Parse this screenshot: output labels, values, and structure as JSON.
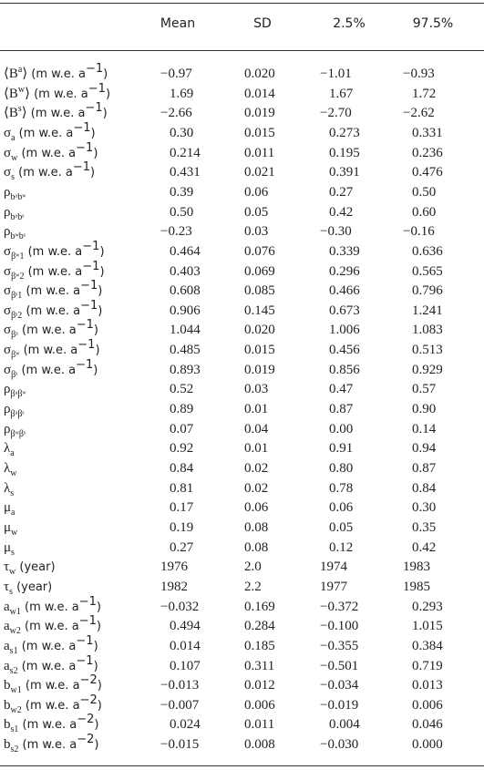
{
  "table": {
    "columns": [
      "Mean",
      "SD",
      "2.5%",
      "97.5%"
    ],
    "rows": [
      {
        "label": [
          {
            "t": "⟨B"
          },
          {
            "sup": "a"
          },
          {
            "t": "⟩"
          },
          {
            "u": " (m w.e. a"
          },
          {
            "sup": "−1"
          },
          {
            "u": ")"
          }
        ],
        "cells": [
          "−0.97",
          "0.020",
          "−1.01",
          "−0.93"
        ]
      },
      {
        "label": [
          {
            "t": "⟨B"
          },
          {
            "sup": "w"
          },
          {
            "t": "⟩"
          },
          {
            "u": " (m w.e. a"
          },
          {
            "sup": "−1"
          },
          {
            "u": ")"
          }
        ],
        "cells": [
          "1.69",
          "0.014",
          "1.67",
          "1.72"
        ]
      },
      {
        "label": [
          {
            "t": "⟨B"
          },
          {
            "sup": "s"
          },
          {
            "t": "⟩"
          },
          {
            "u": " (m w.e. a"
          },
          {
            "sup": "−1"
          },
          {
            "u": ")"
          }
        ],
        "cells": [
          "−2.66",
          "0.019",
          "−2.70",
          "−2.62"
        ]
      },
      {
        "label": [
          {
            "t": "σ"
          },
          {
            "sub": "a"
          },
          {
            "u": " (m w.e. a"
          },
          {
            "sup": "−1"
          },
          {
            "u": ")"
          }
        ],
        "cells": [
          "0.30",
          "0.015",
          "0.273",
          "0.331"
        ]
      },
      {
        "label": [
          {
            "t": "σ"
          },
          {
            "sub": "w"
          },
          {
            "u": " (m w.e. a"
          },
          {
            "sup": "−1"
          },
          {
            "u": ")"
          }
        ],
        "cells": [
          "0.214",
          "0.011",
          "0.195",
          "0.236"
        ]
      },
      {
        "label": [
          {
            "t": "σ"
          },
          {
            "sub": "s"
          },
          {
            "u": " (m w.e. a"
          },
          {
            "sup": "−1"
          },
          {
            "u": ")"
          }
        ],
        "cells": [
          "0.431",
          "0.021",
          "0.391",
          "0.476"
        ]
      },
      {
        "label": [
          {
            "t": "ρ"
          },
          {
            "sub": "bᵃbʷ"
          }
        ],
        "cells": [
          "0.39",
          "0.06",
          "0.27",
          "0.50"
        ]
      },
      {
        "label": [
          {
            "t": "ρ"
          },
          {
            "sub": "bᵃbˢ"
          }
        ],
        "cells": [
          "0.50",
          "0.05",
          "0.42",
          "0.60"
        ]
      },
      {
        "label": [
          {
            "t": "ρ"
          },
          {
            "sub": "bʷbˢ"
          }
        ],
        "cells": [
          "−0.23",
          "0.03",
          "−0.30",
          "−0.16"
        ]
      },
      {
        "label": [
          {
            "t": "σ"
          },
          {
            "sub": "βʷ1"
          },
          {
            "u": " (m w.e. a"
          },
          {
            "sup": "−1"
          },
          {
            "u": ")"
          }
        ],
        "cells": [
          "0.464",
          "0.076",
          "0.339",
          "0.636"
        ]
      },
      {
        "label": [
          {
            "t": "σ"
          },
          {
            "sub": "βʷ2"
          },
          {
            "u": " (m w.e. a"
          },
          {
            "sup": "−1"
          },
          {
            "u": ")"
          }
        ],
        "cells": [
          "0.403",
          "0.069",
          "0.296",
          "0.565"
        ]
      },
      {
        "label": [
          {
            "t": "σ"
          },
          {
            "sub": "βˢ1"
          },
          {
            "u": " (m w.e. a"
          },
          {
            "sup": "−1"
          },
          {
            "u": ")"
          }
        ],
        "cells": [
          "0.608",
          "0.085",
          "0.466",
          "0.796"
        ]
      },
      {
        "label": [
          {
            "t": "σ"
          },
          {
            "sub": "βˢ2"
          },
          {
            "u": " (m w.e. a"
          },
          {
            "sup": "−1"
          },
          {
            "u": ")"
          }
        ],
        "cells": [
          "0.906",
          "0.145",
          "0.673",
          "1.241"
        ]
      },
      {
        "label": [
          {
            "t": "σ"
          },
          {
            "sub": "βᵃ"
          },
          {
            "u": " (m w.e. a"
          },
          {
            "sup": "−1"
          },
          {
            "u": ")"
          }
        ],
        "cells": [
          "1.044",
          "0.020",
          "1.006",
          "1.083"
        ]
      },
      {
        "label": [
          {
            "t": "σ"
          },
          {
            "sub": "βʷ"
          },
          {
            "u": " (m w.e. a"
          },
          {
            "sup": "−1"
          },
          {
            "u": ")"
          }
        ],
        "cells": [
          "0.485",
          "0.015",
          "0.456",
          "0.513"
        ]
      },
      {
        "label": [
          {
            "t": "σ"
          },
          {
            "sub": "βˢ"
          },
          {
            "u": " (m w.e. a"
          },
          {
            "sup": "−1"
          },
          {
            "u": ")"
          }
        ],
        "cells": [
          "0.893",
          "0.019",
          "0.856",
          "0.929"
        ]
      },
      {
        "label": [
          {
            "t": "ρ"
          },
          {
            "sub": "βᵃβʷ"
          }
        ],
        "cells": [
          "0.52",
          "0.03",
          "0.47",
          "0.57"
        ]
      },
      {
        "label": [
          {
            "t": "ρ"
          },
          {
            "sub": "βᵃβˢ"
          }
        ],
        "cells": [
          "0.89",
          "0.01",
          "0.87",
          "0.90"
        ]
      },
      {
        "label": [
          {
            "t": "ρ"
          },
          {
            "sub": "βʷβˢ"
          }
        ],
        "cells": [
          "0.07",
          "0.04",
          "0.00",
          "0.14"
        ]
      },
      {
        "label": [
          {
            "t": "λ"
          },
          {
            "sub": "a"
          }
        ],
        "cells": [
          "0.92",
          "0.01",
          "0.91",
          "0.94"
        ]
      },
      {
        "label": [
          {
            "t": "λ"
          },
          {
            "sub": "w"
          }
        ],
        "cells": [
          "0.84",
          "0.02",
          "0.80",
          "0.87"
        ]
      },
      {
        "label": [
          {
            "t": "λ"
          },
          {
            "sub": "s"
          }
        ],
        "cells": [
          "0.81",
          "0.02",
          "0.78",
          "0.84"
        ]
      },
      {
        "label": [
          {
            "t": "μ"
          },
          {
            "sub": "a"
          }
        ],
        "cells": [
          "0.17",
          "0.06",
          "0.06",
          "0.30"
        ]
      },
      {
        "label": [
          {
            "t": "μ"
          },
          {
            "sub": "w"
          }
        ],
        "cells": [
          "0.19",
          "0.08",
          "0.05",
          "0.35"
        ]
      },
      {
        "label": [
          {
            "t": "μ"
          },
          {
            "sub": "s"
          }
        ],
        "cells": [
          "0.27",
          "0.08",
          "0.12",
          "0.42"
        ]
      },
      {
        "label": [
          {
            "t": "τ"
          },
          {
            "sub": "w"
          },
          {
            "u": " (year)"
          }
        ],
        "cells": [
          "1976",
          "2.0",
          "1974",
          "1983"
        ]
      },
      {
        "label": [
          {
            "t": "τ"
          },
          {
            "sub": "s"
          },
          {
            "u": " (year)"
          }
        ],
        "cells": [
          "1982",
          "2.2",
          "1977",
          "1985"
        ]
      },
      {
        "label": [
          {
            "t": "a"
          },
          {
            "sub": "w1"
          },
          {
            "u": " (m w.e. a"
          },
          {
            "sup": "−1"
          },
          {
            "u": ")"
          }
        ],
        "cells": [
          "−0.032",
          "0.169",
          "−0.372",
          "0.293"
        ]
      },
      {
        "label": [
          {
            "t": "a"
          },
          {
            "sub": "w2"
          },
          {
            "u": " (m w.e. a"
          },
          {
            "sup": "−1"
          },
          {
            "u": ")"
          }
        ],
        "cells": [
          "0.494",
          "0.284",
          "−0.100",
          "1.015"
        ]
      },
      {
        "label": [
          {
            "t": "a"
          },
          {
            "sub": "s1"
          },
          {
            "u": " (m w.e. a"
          },
          {
            "sup": "−1"
          },
          {
            "u": ")"
          }
        ],
        "cells": [
          "0.014",
          "0.185",
          "−0.355",
          "0.384"
        ]
      },
      {
        "label": [
          {
            "t": "a"
          },
          {
            "sub": "s2"
          },
          {
            "u": " (m w.e. a"
          },
          {
            "sup": "−1"
          },
          {
            "u": ")"
          }
        ],
        "cells": [
          "0.107",
          "0.311",
          "−0.501",
          "0.719"
        ]
      },
      {
        "label": [
          {
            "t": "b"
          },
          {
            "sub": "w1"
          },
          {
            "u": " (m w.e. a"
          },
          {
            "sup": "−2"
          },
          {
            "u": ")"
          }
        ],
        "cells": [
          "−0.013",
          "0.012",
          "−0.034",
          "0.013"
        ]
      },
      {
        "label": [
          {
            "t": "b"
          },
          {
            "sub": "w2"
          },
          {
            "u": " (m w.e. a"
          },
          {
            "sup": "−2"
          },
          {
            "u": ")"
          }
        ],
        "cells": [
          "−0.007",
          "0.006",
          "−0.019",
          "0.006"
        ]
      },
      {
        "label": [
          {
            "t": "b"
          },
          {
            "sub": "s1"
          },
          {
            "u": " (m w.e. a"
          },
          {
            "sup": "−2"
          },
          {
            "u": ")"
          }
        ],
        "cells": [
          "0.024",
          "0.011",
          "0.004",
          "0.046"
        ]
      },
      {
        "label": [
          {
            "t": "b"
          },
          {
            "sub": "s2"
          },
          {
            "u": " (m w.e. a"
          },
          {
            "sup": "−2"
          },
          {
            "u": ")"
          }
        ],
        "cells": [
          "−0.015",
          "0.008",
          "−0.030",
          "0.000"
        ]
      }
    ]
  }
}
